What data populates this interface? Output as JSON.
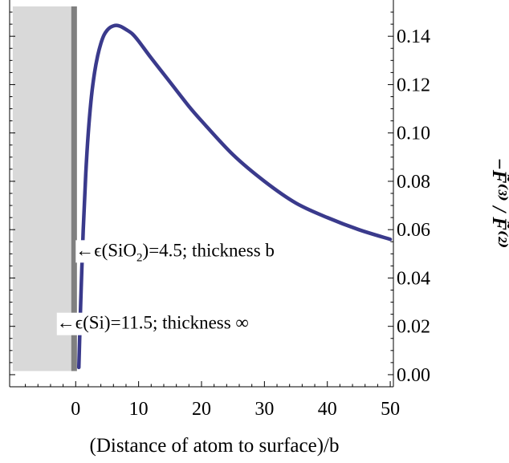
{
  "chart_data": {
    "type": "line",
    "xlabel": "(Distance of atom to surface)/b",
    "ylabel": "−F̃⁽³⁾ / F̃⁽²⁾",
    "xlim": [
      -10.5,
      50.5
    ],
    "ylim": [
      -0.005,
      0.155
    ],
    "x_ticks": [
      "0",
      "10",
      "20",
      "30",
      "40",
      "50"
    ],
    "y_ticks": [
      "0.00",
      "0.02",
      "0.04",
      "0.06",
      "0.08",
      "0.10",
      "0.12",
      "0.14"
    ],
    "series": [
      {
        "color": "#3a3a8c",
        "x": [
          0.5,
          0.8,
          1.2,
          1.6,
          2.0,
          2.5,
          3.0,
          3.5,
          4.0,
          4.5,
          5.0,
          5.5,
          6.0,
          6.5,
          7.0,
          7.5,
          8.0,
          9.0,
          10.0,
          12.0,
          15.0,
          18.0,
          20.0,
          25.0,
          30.0,
          35.0,
          40.0,
          45.0,
          50.0
        ],
        "y": [
          0.003,
          0.03,
          0.06,
          0.083,
          0.1,
          0.115,
          0.125,
          0.132,
          0.137,
          0.1405,
          0.1425,
          0.1437,
          0.1443,
          0.1445,
          0.1442,
          0.1436,
          0.1428,
          0.141,
          0.138,
          0.131,
          0.121,
          0.111,
          0.105,
          0.091,
          0.08,
          0.071,
          0.065,
          0.06,
          0.056
        ]
      }
    ],
    "regions": [
      {
        "name": "Si substrate",
        "color": "#d9d9d9",
        "x_from": -10,
        "x_to": -0.7
      },
      {
        "name": "SiO2 layer",
        "color": "#808080",
        "x_from": -0.7,
        "x_to": 0.2
      }
    ],
    "annotations": [
      {
        "text_parts": [
          "←ϵ(SiO",
          "2",
          ")=4.5;  thickness b"
        ],
        "x": 0.0,
        "y": 0.049
      },
      {
        "text_parts": [
          "←ϵ(Si)=11.5;  thickness ∞"
        ],
        "x": -3.0,
        "y": 0.019
      }
    ],
    "grid": false,
    "legend": "none"
  }
}
